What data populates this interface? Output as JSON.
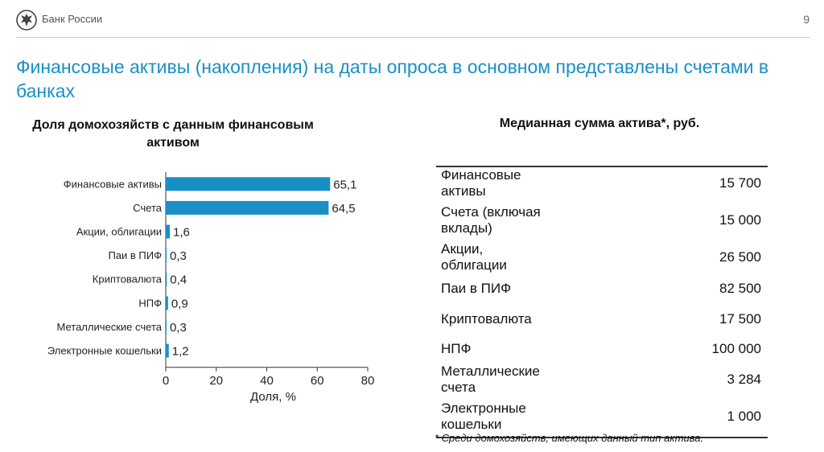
{
  "header": {
    "bank_name": "Банк России",
    "page_number": "9",
    "logo_icon": "eagle-emblem-icon"
  },
  "title": "Финансовые активы (накопления) на даты опроса в основном представлены счетами в банках",
  "chart_data": {
    "type": "bar",
    "orientation": "horizontal",
    "title": "Доля домохозяйств с данным финансовым активом",
    "categories": [
      "Финансовые активы",
      "Счета",
      "Акции, облигации",
      "Паи в ПИФ",
      "Криптовалюта",
      "НПФ",
      "Металлические счета",
      "Электронные кошельки"
    ],
    "values": [
      65.1,
      64.5,
      1.6,
      0.3,
      0.4,
      0.9,
      0.3,
      1.2
    ],
    "value_labels": [
      "65,1",
      "64,5",
      "1,6",
      "0,3",
      "0,4",
      "0,9",
      "0,3",
      "1,2"
    ],
    "xlabel": "Доля, %",
    "xlim": [
      0,
      80
    ],
    "xticks": [
      0,
      20,
      40,
      60,
      80
    ],
    "bar_color": "#1a8fc6",
    "grid": false
  },
  "table": {
    "title": "Медианная сумма актива*, руб.",
    "rows": [
      {
        "label": "Финансовые активы",
        "value": "15 700"
      },
      {
        "label": "Счета (включая вклады)",
        "value": "15 000"
      },
      {
        "label": "Акции, облигации",
        "value": "26 500"
      },
      {
        "label": "Паи в ПИФ",
        "value": "82 500"
      },
      {
        "label": "Криптовалюта",
        "value": "17 500"
      },
      {
        "label": "НПФ",
        "value": "100 000"
      },
      {
        "label": "Металлические счета",
        "value": "3 284"
      },
      {
        "label": "Электронные кошельки",
        "value": "1 000"
      }
    ]
  },
  "footnote": "* Среди домохозяйств, имеющих данный тип актива.",
  "colors": {
    "accent": "#1a8fc6"
  }
}
